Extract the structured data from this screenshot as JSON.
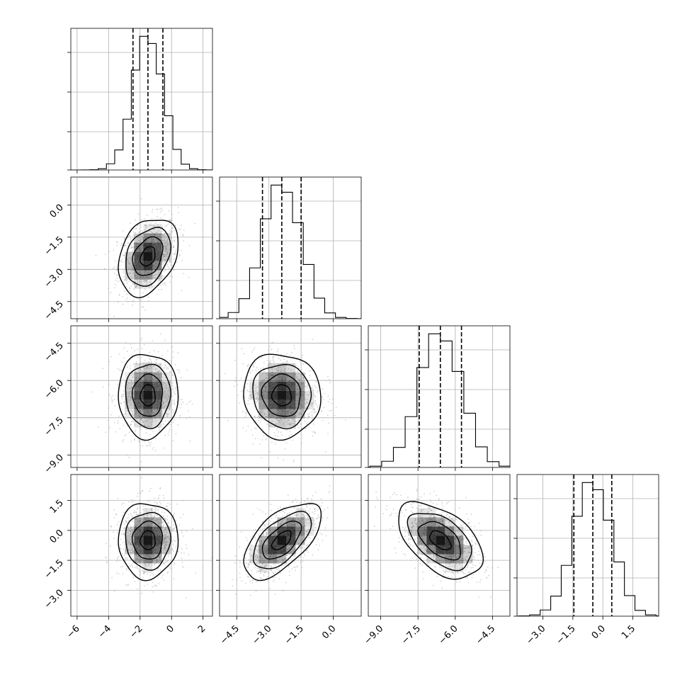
{
  "chart_data": {
    "type": "corner",
    "n_params": 4,
    "parameters": [
      {
        "mean": -1.5,
        "sd": 0.95,
        "quantiles": [
          -2.45,
          -1.5,
          -0.55
        ],
        "range": [
          -6.4,
          2.6
        ],
        "ticks": [
          -6,
          -4,
          -2,
          0,
          2
        ],
        "tick_labels": [
          "−6",
          "−4",
          "−2",
          "0",
          "2"
        ]
      },
      {
        "mean": -2.4,
        "sd": 0.9,
        "quantiles": [
          -3.3,
          -2.4,
          -1.5
        ],
        "range": [
          -5.3,
          1.3
        ],
        "ticks": [
          -4.5,
          -3.0,
          -1.5,
          0.0
        ],
        "tick_labels": [
          "−4.5",
          "−3.0",
          "−1.5",
          "0.0"
        ]
      },
      {
        "mean": -6.6,
        "sd": 0.85,
        "quantiles": [
          -7.45,
          -6.6,
          -5.75
        ],
        "range": [
          -9.5,
          -3.8
        ],
        "ticks": [
          -9.0,
          -7.5,
          -6.0,
          -4.5
        ],
        "tick_labels": [
          "−9.0",
          "−7.5",
          "−6.0",
          "−4.5"
        ]
      },
      {
        "mean": -0.5,
        "sd": 0.95,
        "quantiles": [
          -1.45,
          -0.5,
          0.45
        ],
        "range": [
          -4.3,
          2.8
        ],
        "ticks": [
          -3.0,
          -1.5,
          0.0,
          1.5
        ],
        "tick_labels": [
          "−3.0",
          "−1.5",
          "0.0",
          "1.5"
        ]
      }
    ],
    "correlations": [
      [
        0,
        1,
        0.3
      ],
      [
        0,
        2,
        0.0
      ],
      [
        0,
        3,
        0.0
      ],
      [
        1,
        2,
        -0.05
      ],
      [
        1,
        3,
        0.6
      ],
      [
        2,
        3,
        -0.5
      ]
    ],
    "histogram_bins": 20,
    "contour_levels_sigma": [
      0.5,
      1.0,
      1.5,
      2.0
    ],
    "title": "",
    "grid": true,
    "colors": {
      "contour": "#000000",
      "points": "#9e9e9e",
      "density": "#000000",
      "grid": "#b0b0b0"
    }
  }
}
